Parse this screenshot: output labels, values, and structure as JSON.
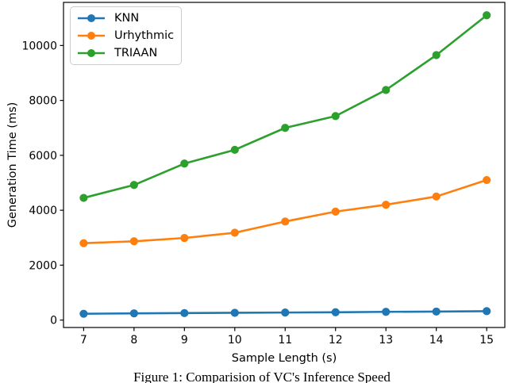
{
  "figure": {
    "caption": "Figure 1: Comparision of VC's Inference Speed"
  },
  "chart_data": {
    "type": "line",
    "title": "",
    "xlabel": "Sample Length (s)",
    "ylabel": "Generation Time (ms)",
    "x": [
      7,
      8,
      9,
      10,
      11,
      12,
      13,
      14,
      15
    ],
    "xticks": [
      7,
      8,
      9,
      10,
      11,
      12,
      13,
      14,
      15
    ],
    "yticks": [
      0,
      2000,
      4000,
      6000,
      8000,
      10000
    ],
    "xlim": [
      6.6,
      15.36
    ],
    "ylim": [
      -270,
      11570
    ],
    "grid": false,
    "legend": {
      "position": "upper-left"
    },
    "series": [
      {
        "name": "KNN",
        "color": "#1f77b4",
        "values": [
          230,
          245,
          255,
          265,
          275,
          285,
          300,
          310,
          325
        ]
      },
      {
        "name": "Urhythmic",
        "color": "#ff7f0e",
        "values": [
          2800,
          2870,
          2990,
          3180,
          3590,
          3950,
          4200,
          4500,
          5100
        ]
      },
      {
        "name": "TRIAAN",
        "color": "#2ca02c",
        "values": [
          4450,
          4920,
          5700,
          6200,
          7000,
          7430,
          8380,
          9650,
          11100
        ]
      }
    ]
  }
}
